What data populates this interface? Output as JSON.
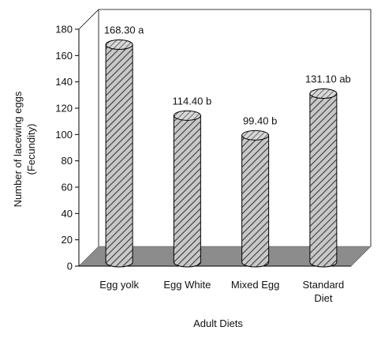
{
  "chart_data": {
    "type": "bar",
    "style": "3d-cylinder",
    "categories": [
      [
        "Egg yolk"
      ],
      [
        "Egg White"
      ],
      [
        "Mixed Egg"
      ],
      [
        "Standard",
        "Diet"
      ]
    ],
    "values": [
      168.3,
      114.4,
      99.4,
      131.1
    ],
    "value_labels": [
      "168.30 a",
      "114.40 b",
      "99.40 b",
      "131.10 ab"
    ],
    "xlabel": "Adult Diets",
    "ylabel_lines": [
      "Number of lacewing eggs",
      "(Fecundity)"
    ],
    "ylim": [
      0,
      180
    ],
    "yticks": [
      0,
      20,
      40,
      60,
      80,
      100,
      120,
      140,
      160,
      180
    ],
    "grid": false,
    "legend": "none",
    "colors": {
      "bar_fill": "#c8c8c8",
      "bar_hatch": "#3a3a3a",
      "bar_outline": "#000000",
      "floor": "#8c8c8c"
    }
  }
}
